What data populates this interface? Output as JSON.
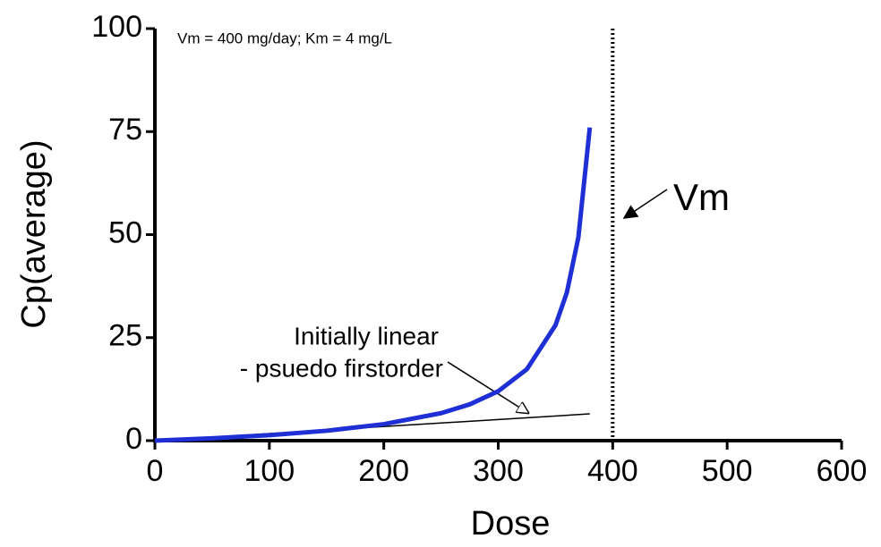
{
  "chart_data": {
    "type": "line",
    "xlabel": "Dose",
    "ylabel": "Cp(average)",
    "xlim": [
      0,
      600
    ],
    "xticks": [
      0,
      100,
      200,
      300,
      400,
      500,
      600
    ],
    "ylim": [
      0,
      100
    ],
    "yticks": [
      0,
      25,
      50,
      75,
      100
    ],
    "grid": false,
    "series": [
      {
        "color": "#1f2fd6",
        "x": [
          0,
          50,
          100,
          150,
          200,
          250,
          275,
          300,
          325,
          350,
          360,
          370,
          380
        ],
        "values": [
          0,
          0.571,
          1.333,
          2.4,
          4,
          6.667,
          8.8,
          12,
          17.333,
          28,
          36,
          49.333,
          76
        ]
      },
      {
        "color": "#000000",
        "x": [
          0,
          380
        ],
        "values": [
          0,
          6.5
        ]
      }
    ],
    "vline": 400,
    "annotations": [
      "Vm = 400 mg/day; Km = 4 mg/L",
      "Initially linear",
      "- psuedo firstorder",
      "Vm"
    ]
  }
}
